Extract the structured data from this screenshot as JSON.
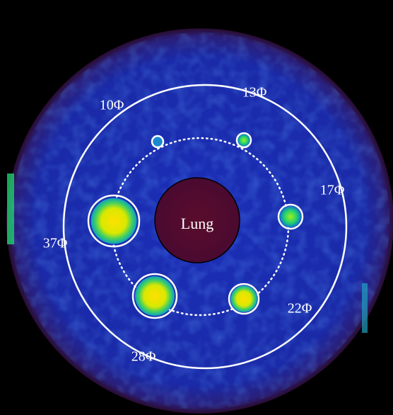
{
  "center_label": "Lung",
  "sphere_labels": [
    "10Φ",
    "13Φ",
    "17Φ",
    "22Φ",
    "28Φ",
    "37Φ"
  ]
}
